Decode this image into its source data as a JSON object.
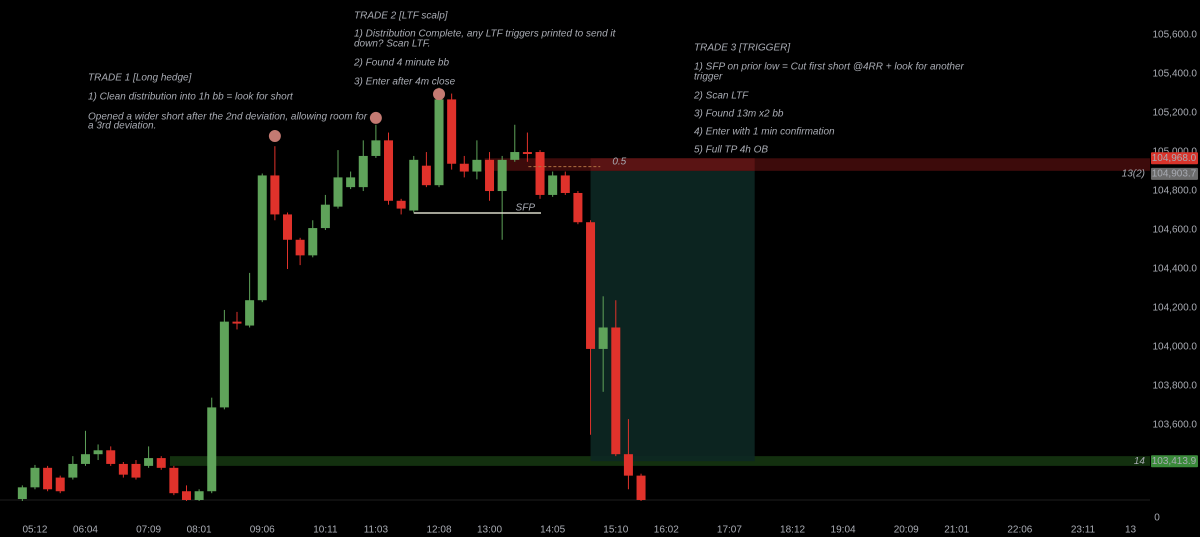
{
  "chart_data": {
    "type": "candlestick",
    "up_color": "#5fa35a",
    "down_color": "#e0322b",
    "xlim": [
      276,
      1460
    ],
    "ylim": [
      103215,
      105780
    ],
    "xticks": [
      {
        "value": 312,
        "label": "05:12"
      },
      {
        "value": 364,
        "label": "06:04"
      },
      {
        "value": 429,
        "label": "07:09"
      },
      {
        "value": 481,
        "label": "08:01"
      },
      {
        "value": 546,
        "label": "09:06"
      },
      {
        "value": 611,
        "label": "10:11"
      },
      {
        "value": 663,
        "label": "11:03"
      },
      {
        "value": 728,
        "label": "12:08"
      },
      {
        "value": 780,
        "label": "13:00"
      },
      {
        "value": 845,
        "label": "14:05"
      },
      {
        "value": 910,
        "label": "15:10"
      },
      {
        "value": 962,
        "label": "16:02"
      },
      {
        "value": 1027,
        "label": "17:07"
      },
      {
        "value": 1092,
        "label": "18:12"
      },
      {
        "value": 1144,
        "label": "19:04"
      },
      {
        "value": 1209,
        "label": "20:09"
      },
      {
        "value": 1261,
        "label": "21:01"
      },
      {
        "value": 1326,
        "label": "22:06"
      },
      {
        "value": 1391,
        "label": "23:11"
      },
      {
        "value": 1440,
        "label": "13"
      }
    ],
    "yticks": [
      {
        "value": 103600,
        "label": "103,600.0"
      },
      {
        "value": 103800,
        "label": "103,800.0"
      },
      {
        "value": 104000,
        "label": "104,000.0"
      },
      {
        "value": 104200,
        "label": "104,200.0"
      },
      {
        "value": 104400,
        "label": "104,400.0"
      },
      {
        "value": 104600,
        "label": "104,600.0"
      },
      {
        "value": 104800,
        "label": "104,800.0"
      },
      {
        "value": 105000,
        "label": "105,000.0"
      },
      {
        "value": 105200,
        "label": "105,200.0"
      },
      {
        "value": 105400,
        "label": "105,400.0"
      },
      {
        "value": 105600,
        "label": "105,600.0"
      }
    ],
    "pane_tick": 0,
    "x": [
      299,
      312,
      325,
      338,
      351,
      364,
      377,
      390,
      403,
      416,
      429,
      442,
      455,
      468,
      481,
      494,
      507,
      520,
      533,
      546,
      559,
      572,
      585,
      598,
      611,
      624,
      637,
      650,
      663,
      676,
      689,
      702,
      715,
      728,
      741,
      754,
      767,
      780,
      793,
      806,
      819,
      832,
      845,
      858,
      871,
      884,
      897,
      910,
      923,
      936
    ],
    "ohlc": [
      [
        103220,
        103290,
        103210,
        103280
      ],
      [
        103280,
        103395,
        103270,
        103380
      ],
      [
        103380,
        103390,
        103260,
        103270
      ],
      [
        103330,
        103340,
        103250,
        103260
      ],
      [
        103330,
        103440,
        103320,
        103400
      ],
      [
        103400,
        103570,
        103390,
        103450
      ],
      [
        103450,
        103500,
        103420,
        103470
      ],
      [
        103470,
        103490,
        103390,
        103400
      ],
      [
        103400,
        103410,
        103330,
        103345
      ],
      [
        103400,
        103420,
        103320,
        103330
      ],
      [
        103390,
        103490,
        103380,
        103430
      ],
      [
        103430,
        103440,
        103370,
        103380
      ],
      [
        103380,
        103390,
        103240,
        103250
      ],
      [
        103260,
        103290,
        103210,
        103215
      ],
      [
        103215,
        103270,
        103210,
        103260
      ],
      [
        103260,
        103740,
        103250,
        103690
      ],
      [
        103690,
        104190,
        103680,
        104130
      ],
      [
        104130,
        104180,
        104090,
        104120
      ],
      [
        104110,
        104380,
        104100,
        104240
      ],
      [
        104240,
        104890,
        104230,
        104880
      ],
      [
        104880,
        105030,
        104650,
        104680
      ],
      [
        104680,
        104690,
        104400,
        104550
      ],
      [
        104550,
        104560,
        104420,
        104470
      ],
      [
        104470,
        104650,
        104460,
        104610
      ],
      [
        104610,
        104780,
        104600,
        104730
      ],
      [
        104720,
        105010,
        104710,
        104870
      ],
      [
        104820,
        104900,
        104810,
        104870
      ],
      [
        104820,
        105060,
        104800,
        104980
      ],
      [
        104980,
        105140,
        104970,
        105060
      ],
      [
        105060,
        105100,
        104730,
        104750
      ],
      [
        104750,
        104760,
        104680,
        104710
      ],
      [
        104700,
        104980,
        104690,
        104960
      ],
      [
        104930,
        105000,
        104820,
        104830
      ],
      [
        104830,
        105330,
        104820,
        105270
      ],
      [
        105270,
        105300,
        104910,
        104940
      ],
      [
        104940,
        104980,
        104870,
        104900
      ],
      [
        104900,
        105060,
        104860,
        104960
      ],
      [
        104960,
        105000,
        104750,
        104800
      ],
      [
        104800,
        104980,
        104550,
        104960
      ],
      [
        104960,
        105140,
        104950,
        105000
      ],
      [
        105000,
        105100,
        104950,
        104990
      ],
      [
        105000,
        105010,
        104760,
        104780
      ],
      [
        104780,
        104900,
        104770,
        104880
      ],
      [
        104880,
        104900,
        104780,
        104790
      ],
      [
        104790,
        104800,
        104630,
        104640
      ],
      [
        104640,
        104650,
        103550,
        103990
      ],
      [
        103990,
        104260,
        103770,
        104100
      ],
      [
        104100,
        104240,
        103440,
        103450
      ],
      [
        103450,
        103630,
        103270,
        103340
      ],
      [
        103340,
        103350,
        103210,
        103215
      ]
    ],
    "markers": [
      {
        "x": 559,
        "y": 105082
      },
      {
        "x": 663,
        "y": 105175
      },
      {
        "x": 728,
        "y": 105297
      }
    ],
    "marker_color": "#c47a72",
    "zones": [
      {
        "from": 775,
        "top": 104968,
        "bottom": 104903.7,
        "color": "#3d0b0b"
      },
      {
        "from": 451,
        "top": 103440,
        "bottom": 103390,
        "color": "#13300f"
      }
    ],
    "position": {
      "from": 884,
      "to": 1053,
      "entry": 104903.7,
      "stop": 104968,
      "target": 103413.9
    },
    "levels": [
      {
        "label": "SFP",
        "price": 104687,
        "from": 702,
        "to": 833,
        "color": "#d8d8c8"
      },
      {
        "label": "0.5",
        "price": 104925,
        "from": 820,
        "to": 894,
        "color": "#b07040"
      }
    ],
    "price_labels": [
      {
        "value": 104968,
        "label": "104,968.0",
        "color": "#d9342b"
      },
      {
        "value": 104903.7,
        "label": "104,903.7",
        "color": "#6b6b6b",
        "tag": "13(2)"
      },
      {
        "value": 103413.9,
        "label": "103,413.9",
        "color": "#3a8a3a",
        "tag": "14"
      }
    ],
    "annotations": [
      {
        "lines": [
          "TRADE 1 [Long hedge]",
          "1) Clean distribution into 1h bb = look for short",
          "Opened a wider short after the 2nd deviation, allowing room for",
          "a 3rd deviation."
        ]
      },
      {
        "lines": [
          "TRADE 2 [LTF scalp]",
          "1) Distribution Complete, any LTF triggers printed to send it",
          "down? Scan LTF.",
          "2) Found 4 minute bb",
          "3) Enter after 4m close"
        ]
      },
      {
        "lines": [
          "TRADE 3 [TRIGGER]",
          "1) SFP on prior low = Cut first short @4RR + look for another",
          "trigger",
          "2) Scan LTF",
          "3) Found 13m x2 bb",
          "4) Enter with 1 min confirmation",
          "5) Full TP 4h OB"
        ]
      }
    ]
  }
}
